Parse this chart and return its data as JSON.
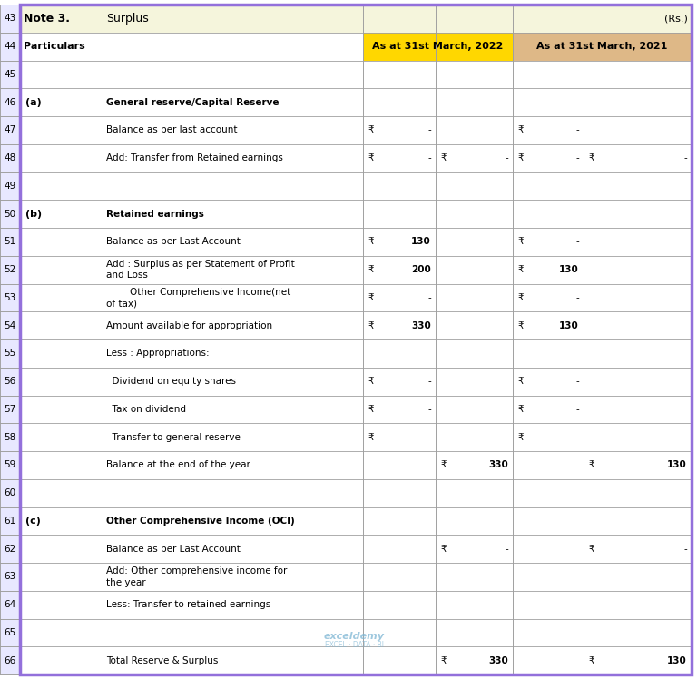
{
  "title_note": "Note 3.",
  "title_surplus": "Surplus",
  "title_rs": "(Rs.)",
  "col_header_2022": "As at 31st March, 2022",
  "col_header_2021": "As at 31st March, 2021",
  "particulars_label": "Particulars",
  "rows": [
    {
      "row": 43,
      "col1": "",
      "col2": "",
      "type": "header"
    },
    {
      "row": 44,
      "col1": "",
      "col2": "",
      "type": "col_header"
    },
    {
      "row": 45,
      "col1": "",
      "col2": "",
      "type": "empty"
    },
    {
      "row": 46,
      "col1": "(a)",
      "col2": "General reserve/Capital Reserve",
      "type": "section"
    },
    {
      "row": 47,
      "col1": "",
      "col2": "Balance as per last account",
      "v1": "₹",
      "v2": "-",
      "v5": "₹",
      "v6": "-"
    },
    {
      "row": 48,
      "col1": "",
      "col2": "Add: Transfer from Retained earnings",
      "v1": "₹",
      "v2": "-",
      "v3": "₹",
      "v4": "-",
      "v5": "₹",
      "v6": "-",
      "v7": "₹",
      "v8": "-"
    },
    {
      "row": 49,
      "col1": "",
      "col2": "",
      "type": "empty"
    },
    {
      "row": 50,
      "col1": "(b)",
      "col2": "Retained earnings",
      "type": "section"
    },
    {
      "row": 51,
      "col1": "",
      "col2": "Balance as per Last Account",
      "v1": "₹",
      "v2": "130",
      "v5": "₹",
      "v6": "-"
    },
    {
      "row": 52,
      "col1": "",
      "col2": "Add : Surplus as per Statement of Profit\nand Loss",
      "v1": "₹",
      "v2": "200",
      "v5": "₹",
      "v6": "130"
    },
    {
      "row": 53,
      "col1": "",
      "col2": "        Other Comprehensive Income(net\nof tax)",
      "v1": "₹",
      "v2": "-",
      "v5": "₹",
      "v6": "-"
    },
    {
      "row": 54,
      "col1": "",
      "col2": "Amount available for appropriation",
      "v1": "₹",
      "v2": "330",
      "v5": "₹",
      "v6": "130"
    },
    {
      "row": 55,
      "col1": "",
      "col2": "Less : Appropriations:"
    },
    {
      "row": 56,
      "col1": "",
      "col2": "  Dividend on equity shares",
      "v1": "₹",
      "v2": "-",
      "v5": "₹",
      "v6": "-"
    },
    {
      "row": 57,
      "col1": "",
      "col2": "  Tax on dividend",
      "v1": "₹",
      "v2": "-",
      "v5": "₹",
      "v6": "-"
    },
    {
      "row": 58,
      "col1": "",
      "col2": "  Transfer to general reserve",
      "v1": "₹",
      "v2": "-",
      "v5": "₹",
      "v6": "-"
    },
    {
      "row": 59,
      "col1": "",
      "col2": "Balance at the end of the year",
      "v3": "₹",
      "v4": "330",
      "v7": "₹",
      "v8": "130"
    },
    {
      "row": 60,
      "col1": "",
      "col2": "",
      "type": "empty"
    },
    {
      "row": 61,
      "col1": "(c)",
      "col2": "Other Comprehensive Income (OCI)",
      "type": "section"
    },
    {
      "row": 62,
      "col1": "",
      "col2": "Balance as per Last Account",
      "v3": "₹",
      "v4": "-",
      "v7": "₹",
      "v8": "-"
    },
    {
      "row": 63,
      "col1": "",
      "col2": "Add: Other comprehensive income for\nthe year"
    },
    {
      "row": 64,
      "col1": "",
      "col2": "Less: Transfer to retained earnings"
    },
    {
      "row": 65,
      "col1": "",
      "col2": "",
      "type": "empty"
    },
    {
      "row": 66,
      "col1": "",
      "col2": "Total Reserve & Surplus",
      "v3": "₹",
      "v4": "330",
      "v7": "₹",
      "v8": "130"
    }
  ],
  "colors": {
    "header_bg": "#F5F5DC",
    "col_header_bg_2022": "#FFD700",
    "col_header_bg_2021": "#DEB887",
    "border_purple": "#9370DB",
    "white": "#FFFFFF",
    "grid_line": "#A0A0A0",
    "row_num_bg": "#E8E8FF",
    "row_num_border": "#A0A0A0"
  }
}
